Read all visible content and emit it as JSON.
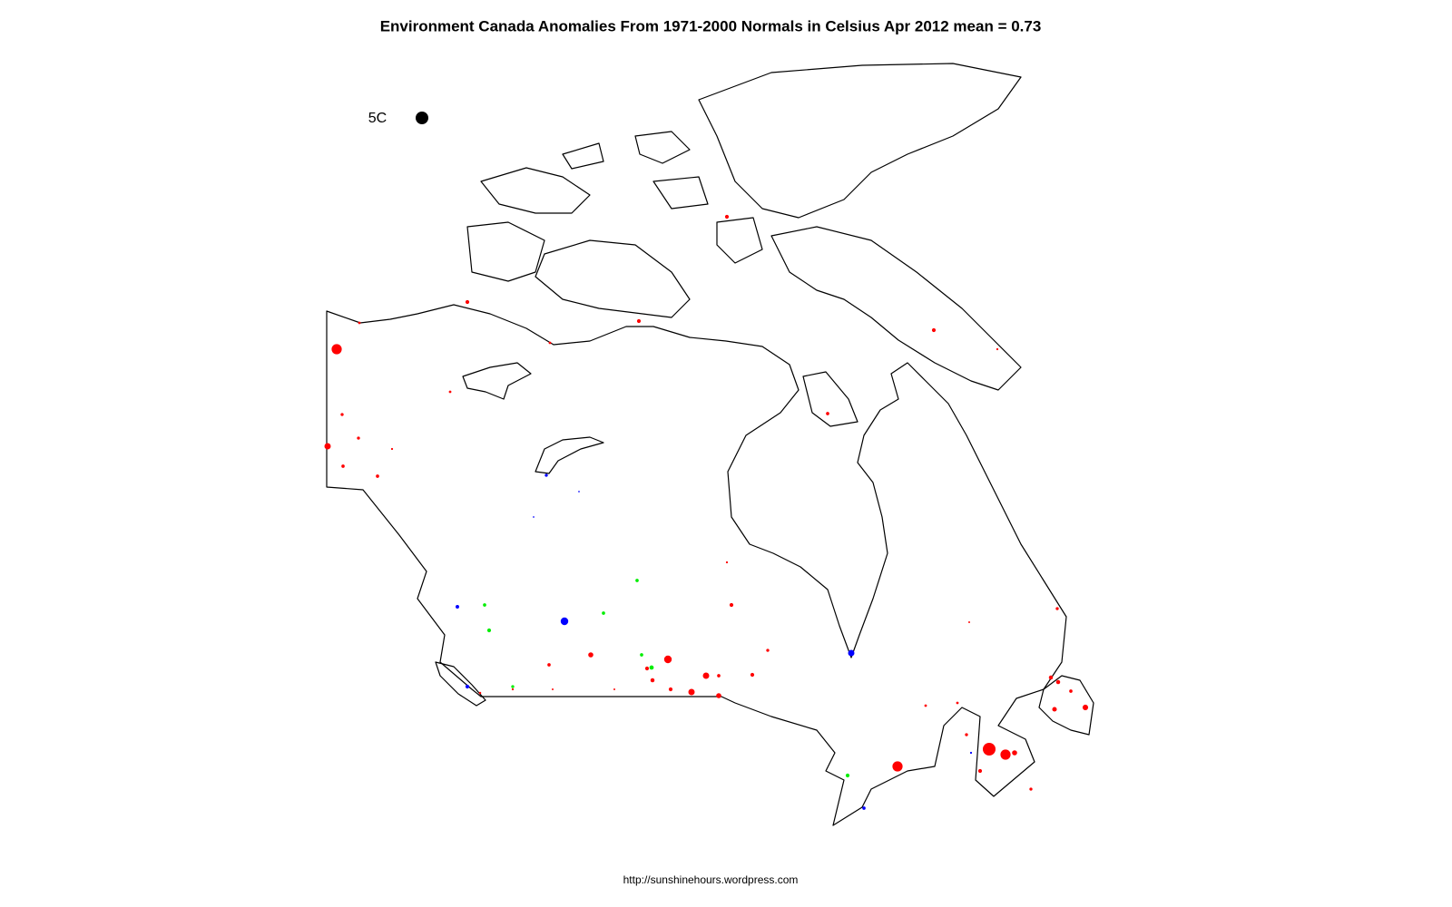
{
  "chart_data": {
    "type": "map",
    "title": "Environment Canada Anomalies From 1971-2000 Normals in Celsius Apr 2012  mean = 0.73",
    "footer": "http://sunshinehours.wordpress.com",
    "legend": {
      "value": 5,
      "label": "5C",
      "color": "#000000"
    },
    "size_reference": 5,
    "series": [
      {
        "color": "#ff0000",
        "values": [
          4,
          1,
          1.5,
          1,
          1.5,
          1.5,
          1.5,
          0.8,
          1.3,
          1,
          1.2,
          2.5,
          1.2,
          0.8,
          1.3,
          1.3,
          1.5,
          2,
          3,
          2.5,
          2.5,
          1.5,
          2,
          1.2,
          1.5,
          1.3,
          1.5,
          1.6,
          1.3,
          4,
          5,
          4,
          1.6,
          1.6,
          2.2,
          1.8,
          1.2,
          1,
          1,
          0.8,
          0.7,
          0.8,
          0.7,
          0.7,
          0.9,
          1.5,
          2,
          1.2,
          1.3,
          1.2
        ]
      },
      {
        "color": "#0000ff",
        "values": [
          -1.2,
          -3,
          -1.4,
          -1.5,
          -2.5,
          -1.3,
          -0.8,
          -0.6,
          -0.6
        ]
      },
      {
        "color": "#00ee00",
        "values": [
          1.3,
          1.3,
          1.5,
          1.3,
          1.3,
          1.7,
          1.2,
          1.5
        ]
      }
    ]
  }
}
